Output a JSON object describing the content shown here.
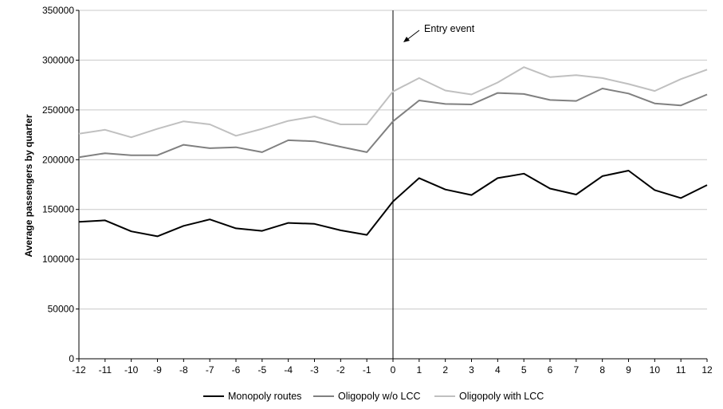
{
  "chart_data": {
    "type": "line",
    "title": "",
    "xlabel": "",
    "ylabel": "Average passengers by quarter",
    "x": [
      -12,
      -11,
      -10,
      -9,
      -8,
      -7,
      -6,
      -5,
      -4,
      -3,
      -2,
      -1,
      0,
      1,
      2,
      3,
      4,
      5,
      6,
      7,
      8,
      9,
      10,
      11,
      12
    ],
    "x_tick_labels": [
      "-12",
      "-11",
      "-10",
      "-9",
      "-8",
      "-7",
      "-6",
      "-5",
      "-4",
      "-3",
      "-2",
      "-1",
      "0",
      "1",
      "2",
      "3",
      "4",
      "5",
      "6",
      "7",
      "8",
      "9",
      "10",
      "11",
      "12"
    ],
    "y_tick_labels": [
      "0",
      "50000",
      "100000",
      "150000",
      "200000",
      "250000",
      "300000",
      "350000"
    ],
    "ylim": [
      0,
      350000
    ],
    "grid": "horizontal",
    "legend_position": "bottom",
    "annotation": {
      "text": "Entry event",
      "x": 0
    },
    "series": [
      {
        "name": "Monopoly routes",
        "color": "#000000",
        "values": [
          137500,
          139000,
          128000,
          123000,
          133500,
          140000,
          131000,
          128500,
          136500,
          135500,
          129000,
          124500,
          158000,
          181500,
          170000,
          164500,
          181500,
          186000,
          171000,
          165000,
          183500,
          189000,
          169500,
          161500,
          174500
        ]
      },
      {
        "name": "Oligopoly w/o LCC",
        "color": "#808080",
        "values": [
          202500,
          206500,
          204500,
          204500,
          215000,
          211500,
          212500,
          207500,
          219500,
          218500,
          213000,
          207500,
          238500,
          259500,
          256000,
          255500,
          267000,
          266000,
          260000,
          259000,
          271500,
          266500,
          256500,
          254500,
          265500
        ]
      },
      {
        "name": "Oligopoly with LCC",
        "color": "#c0c0c0",
        "values": [
          226000,
          230000,
          222500,
          231000,
          238500,
          235500,
          224000,
          231000,
          239000,
          243500,
          235500,
          235500,
          268500,
          282000,
          269500,
          265500,
          277500,
          293000,
          283000,
          285000,
          282000,
          276000,
          269000,
          281000,
          290500
        ]
      }
    ]
  }
}
